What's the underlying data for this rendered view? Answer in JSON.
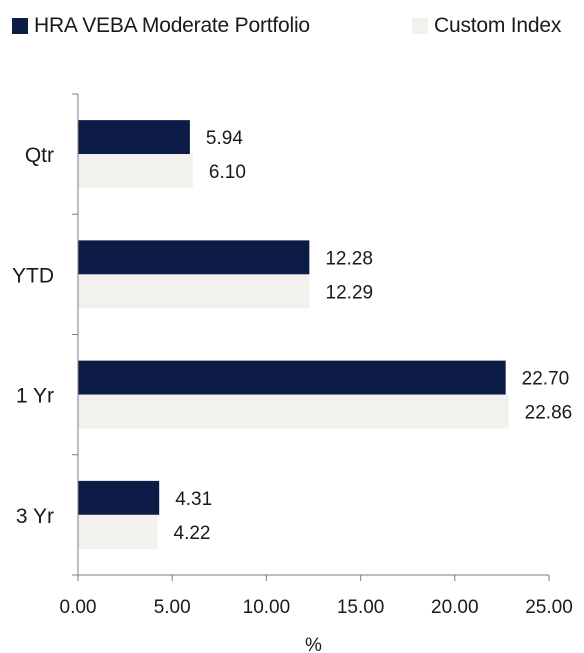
{
  "colors": {
    "series_a": "#0c1c47",
    "series_b": "#f2f1ee",
    "axis": "#7f7f7f",
    "text": "#1a1a1a"
  },
  "legend": {
    "series_a": "HRA VEBA Moderate Portfolio",
    "series_b": "Custom Index"
  },
  "chart_data": {
    "type": "bar",
    "orientation": "horizontal",
    "categories": [
      "Qtr",
      "YTD",
      "1 Yr",
      "3 Yr"
    ],
    "series": [
      {
        "name": "HRA VEBA Moderate Portfolio",
        "values": [
          5.94,
          12.28,
          22.7,
          4.31
        ],
        "labels": [
          "5.94",
          "12.28",
          "22.70",
          "4.31"
        ]
      },
      {
        "name": "Custom Index",
        "values": [
          6.1,
          12.29,
          22.86,
          4.22
        ],
        "labels": [
          "6.10",
          "12.29",
          "22.86",
          "4.22"
        ]
      }
    ],
    "xlabel": "%",
    "xlim": [
      0,
      25
    ],
    "xticks": [
      "0.00",
      "5.00",
      "10.00",
      "15.00",
      "20.00",
      "25.00"
    ],
    "grid": false,
    "legend_position": "top"
  }
}
